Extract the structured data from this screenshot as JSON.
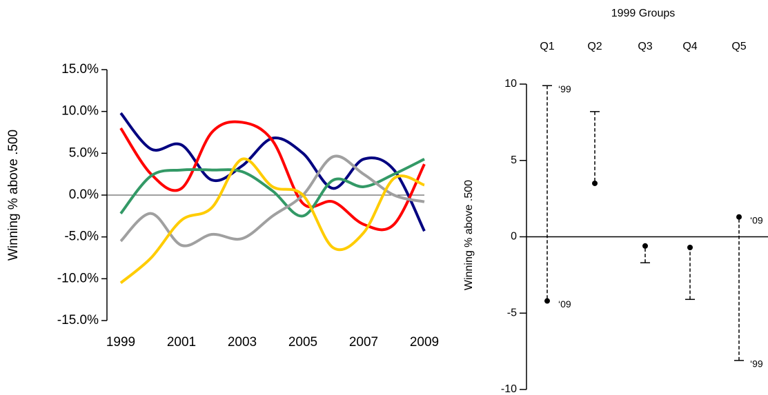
{
  "chart_data": [
    {
      "type": "line",
      "ylabel": "Winning % above .500",
      "x": [
        1999,
        2000,
        2001,
        2002,
        2003,
        2004,
        2005,
        2006,
        2007,
        2008,
        2009
      ],
      "xlim": [
        1999,
        2009
      ],
      "xticks": [
        1999,
        2001,
        2003,
        2005,
        2007,
        2009
      ],
      "ylim": [
        -15,
        15
      ],
      "yticks": [
        {
          "value": 15,
          "label": "15.0%"
        },
        {
          "value": 10,
          "label": "10.0%"
        },
        {
          "value": 5,
          "label": "5.0%"
        },
        {
          "value": 0,
          "label": "0.0%"
        },
        {
          "value": -5,
          "label": "-5.0%"
        },
        {
          "value": -10,
          "label": "-10.0%"
        },
        {
          "value": -15,
          "label": "-15.0%"
        }
      ],
      "series": [
        {
          "color": "#000080",
          "values": [
            9.8,
            5.5,
            6.0,
            1.8,
            3.5,
            6.8,
            5.0,
            0.8,
            4.3,
            3.0,
            -4.3
          ]
        },
        {
          "color": "#ff0000",
          "values": [
            8.0,
            2.5,
            0.8,
            7.5,
            8.7,
            6.5,
            -1.0,
            -0.8,
            -3.5,
            -3.5,
            3.7
          ]
        },
        {
          "color": "#339966",
          "values": [
            -2.2,
            2.3,
            3.0,
            3.0,
            2.8,
            0.5,
            -2.5,
            1.8,
            1.0,
            2.5,
            4.3
          ]
        },
        {
          "color": "#a0a0a0",
          "values": [
            -5.5,
            -2.2,
            -6.0,
            -4.7,
            -5.2,
            -2.5,
            0.0,
            4.6,
            2.5,
            0.0,
            -0.8
          ]
        },
        {
          "color": "#ffcc00",
          "values": [
            -10.5,
            -7.5,
            -3.0,
            -1.5,
            4.3,
            1.0,
            0.0,
            -6.3,
            -4.5,
            2.0,
            1.2
          ]
        }
      ]
    },
    {
      "type": "dumbbell",
      "title": "1999 Groups",
      "ylabel": "Winning % above .500",
      "categories": [
        "Q1",
        "Q2",
        "Q3",
        "Q4",
        "Q5"
      ],
      "ylim": [
        -10,
        10
      ],
      "yticks": [
        10,
        5,
        0,
        -5,
        -10
      ],
      "series": [
        {
          "values": [
            9.9,
            8.2,
            -1.7,
            -4.1,
            -8.1
          ]
        },
        {
          "values": [
            -4.2,
            3.5,
            -0.6,
            -0.7,
            1.3
          ]
        }
      ],
      "annotations": [
        "‘99",
        "‘09",
        "‘09",
        "‘99"
      ]
    }
  ]
}
